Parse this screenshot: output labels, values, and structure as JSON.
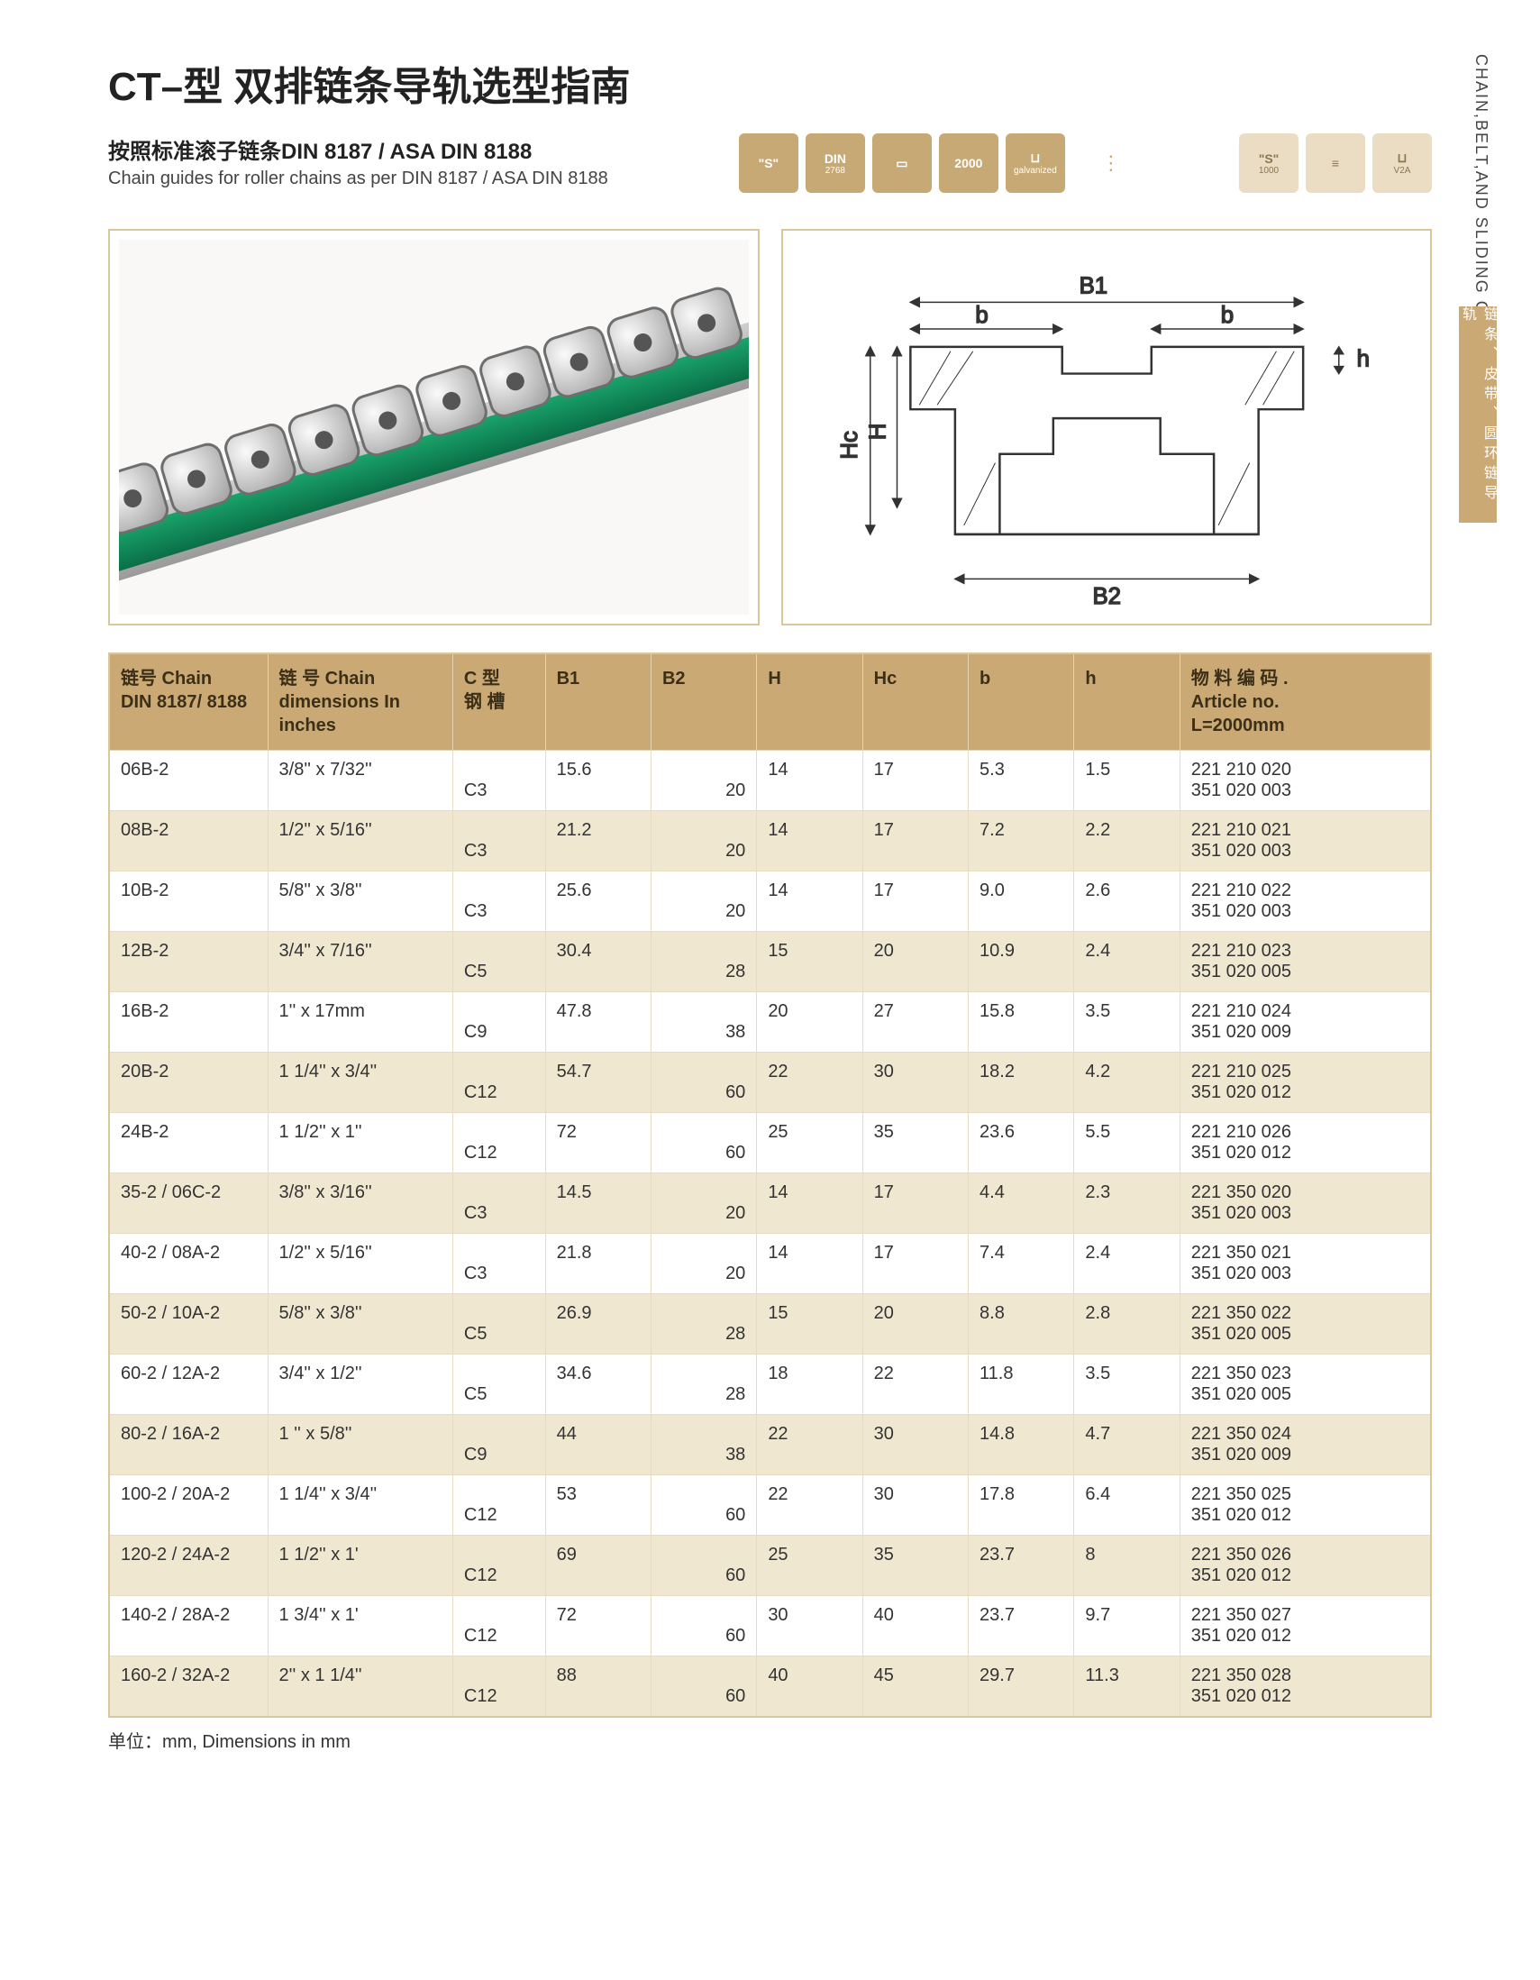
{
  "side_vertical": "CHAIN,BELT,AND SLIDING GUIDES",
  "side_tab": "链条、皮带、圆环链导轨",
  "title": "CT–型 双排链条导轨选型指南",
  "subtitle_cn": "按照标准滚子链条DIN 8187 / ASA DIN 8188",
  "subtitle_en": "Chain guides for roller chains as per DIN 8187 / ASA DIN 8188",
  "badges_a": [
    {
      "l1": "\"S\"",
      "l2": ""
    },
    {
      "l1": "DIN",
      "l2": "2768"
    },
    {
      "l1": "▭",
      "l2": ""
    },
    {
      "l1": "2000",
      "l2": ""
    },
    {
      "l1": "⊔",
      "l2": "galvanized"
    }
  ],
  "badges_b": [
    {
      "l1": "\"S\"",
      "l2": "1000"
    },
    {
      "l1": "≡",
      "l2": ""
    },
    {
      "l1": "⊔",
      "l2": "V2A"
    }
  ],
  "diagram_labels": {
    "B1": "B1",
    "B2": "B2",
    "b": "b",
    "H": "H",
    "Hc": "Hc",
    "h": "h"
  },
  "headers": {
    "chain": "链号 Chain\nDIN 8187/ 8188",
    "dim": "链 号 Chain\ndimensions In inches",
    "cslot": "C 型\n钢 槽",
    "B1": "B1",
    "B2": "B2",
    "H": "H",
    "Hc": "Hc",
    "b": "b",
    "h": "h",
    "art": "物 料 编 码 .\nArticle no.\nL=2000mm"
  },
  "rows": [
    {
      "chain": "06B-2",
      "dim": "3/8'' x 7/32''",
      "c": "C3",
      "B1": "15.6",
      "B2": "20",
      "H": "14",
      "Hc": "17",
      "b": "5.3",
      "h": "1.5",
      "art": "221 210 020\n351 020 003"
    },
    {
      "chain": "08B-2",
      "dim": "1/2'' x 5/16''",
      "c": "C3",
      "B1": "21.2",
      "B2": "20",
      "H": "14",
      "Hc": "17",
      "b": "7.2",
      "h": "2.2",
      "art": "221 210 021\n351 020 003"
    },
    {
      "chain": "10B-2",
      "dim": "5/8'' x 3/8''",
      "c": "C3",
      "B1": "25.6",
      "B2": "20",
      "H": "14",
      "Hc": "17",
      "b": "9.0",
      "h": "2.6",
      "art": "221 210 022\n351 020 003"
    },
    {
      "chain": "12B-2",
      "dim": "3/4'' x 7/16''",
      "c": "C5",
      "B1": "30.4",
      "B2": "28",
      "H": "15",
      "Hc": "20",
      "b": "10.9",
      "h": "2.4",
      "art": "221 210 023\n351 020 005"
    },
    {
      "chain": "16B-2",
      "dim": "1'' x 17mm",
      "c": "C9",
      "B1": "47.8",
      "B2": "38",
      "H": "20",
      "Hc": "27",
      "b": "15.8",
      "h": "3.5",
      "art": "221 210 024\n351 020 009"
    },
    {
      "chain": "20B-2",
      "dim": "1 1/4'' x 3/4''",
      "c": "C12",
      "B1": "54.7",
      "B2": "60",
      "H": "22",
      "Hc": "30",
      "b": "18.2",
      "h": "4.2",
      "art": "221 210 025\n351 020 012"
    },
    {
      "chain": "24B-2",
      "dim": "1 1/2'' x 1''",
      "c": "C12",
      "B1": "72",
      "B2": "60",
      "H": "25",
      "Hc": "35",
      "b": "23.6",
      "h": "5.5",
      "art": "221 210 026\n351 020 012"
    },
    {
      "chain": "35-2 / 06C-2",
      "dim": "3/8'' x 3/16''",
      "c": "C3",
      "B1": "14.5",
      "B2": "20",
      "H": "14",
      "Hc": "17",
      "b": "4.4",
      "h": "2.3",
      "art": "221 350 020\n351 020 003"
    },
    {
      "chain": "40-2 / 08A-2",
      "dim": "1/2'' x 5/16''",
      "c": "C3",
      "B1": "21.8",
      "B2": "20",
      "H": "14",
      "Hc": "17",
      "b": "7.4",
      "h": "2.4",
      "art": "221 350 021\n351 020 003"
    },
    {
      "chain": "50-2 / 10A-2",
      "dim": "5/8'' x 3/8''",
      "c": "C5",
      "B1": "26.9",
      "B2": "28",
      "H": "15",
      "Hc": "20",
      "b": "8.8",
      "h": "2.8",
      "art": "221 350 022\n351 020 005"
    },
    {
      "chain": "60-2 / 12A-2",
      "dim": "3/4'' x 1/2''",
      "c": "C5",
      "B1": "34.6",
      "B2": "28",
      "H": "18",
      "Hc": "22",
      "b": "11.8",
      "h": "3.5",
      "art": "221 350 023\n351 020 005"
    },
    {
      "chain": "80-2 / 16A-2",
      "dim": "1 '' x 5/8''",
      "c": "C9",
      "B1": "44",
      "B2": "38",
      "H": "22",
      "Hc": "30",
      "b": "14.8",
      "h": "4.7",
      "art": "221 350 024\n351 020 009"
    },
    {
      "chain": "100-2 / 20A-2",
      "dim": "1 1/4'' x 3/4''",
      "c": "C12",
      "B1": "53",
      "B2": "60",
      "H": "22",
      "Hc": "30",
      "b": "17.8",
      "h": "6.4",
      "art": "221 350 025\n351 020 012"
    },
    {
      "chain": "120-2 / 24A-2",
      "dim": "1 1/2'' x 1'",
      "c": "C12",
      "B1": "69",
      "B2": "60",
      "H": "25",
      "Hc": "35",
      "b": "23.7",
      "h": "8",
      "art": "221 350 026\n351 020 012"
    },
    {
      "chain": "140-2 / 28A-2",
      "dim": "1 3/4'' x 1'",
      "c": "C12",
      "B1": "72",
      "B2": "60",
      "H": "30",
      "Hc": "40",
      "b": "23.7",
      "h": "9.7",
      "art": "221 350 027\n351 020 012"
    },
    {
      "chain": "160-2 / 32A-2",
      "dim": "2'' x 1 1/4''",
      "c": "C12",
      "B1": "88",
      "B2": "60",
      "H": "40",
      "Hc": "45",
      "b": "29.7",
      "h": "11.3",
      "art": "221 350 028\n351 020 012"
    }
  ],
  "note": "单位：mm, Dimensions in mm",
  "colors": {
    "brand": "#cba974",
    "brand_light": "#f0e7d0",
    "border": "#d9c89b"
  }
}
